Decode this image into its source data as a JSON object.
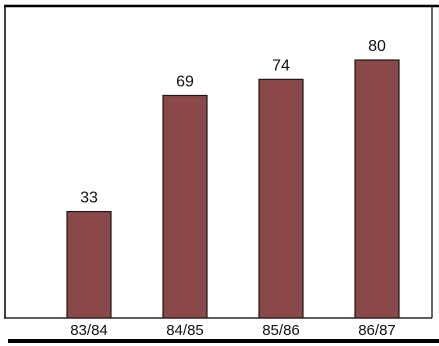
{
  "chart_data": {
    "type": "bar",
    "categories": [
      "83/84",
      "84/85",
      "85/86",
      "86/87"
    ],
    "values": [
      33,
      69,
      74,
      80
    ],
    "title": "",
    "xlabel": "",
    "ylabel": "",
    "ylim": [
      0,
      100
    ],
    "grid": false,
    "legend": "none",
    "bar_color": "#8a4848",
    "frame_color": "#000000"
  }
}
